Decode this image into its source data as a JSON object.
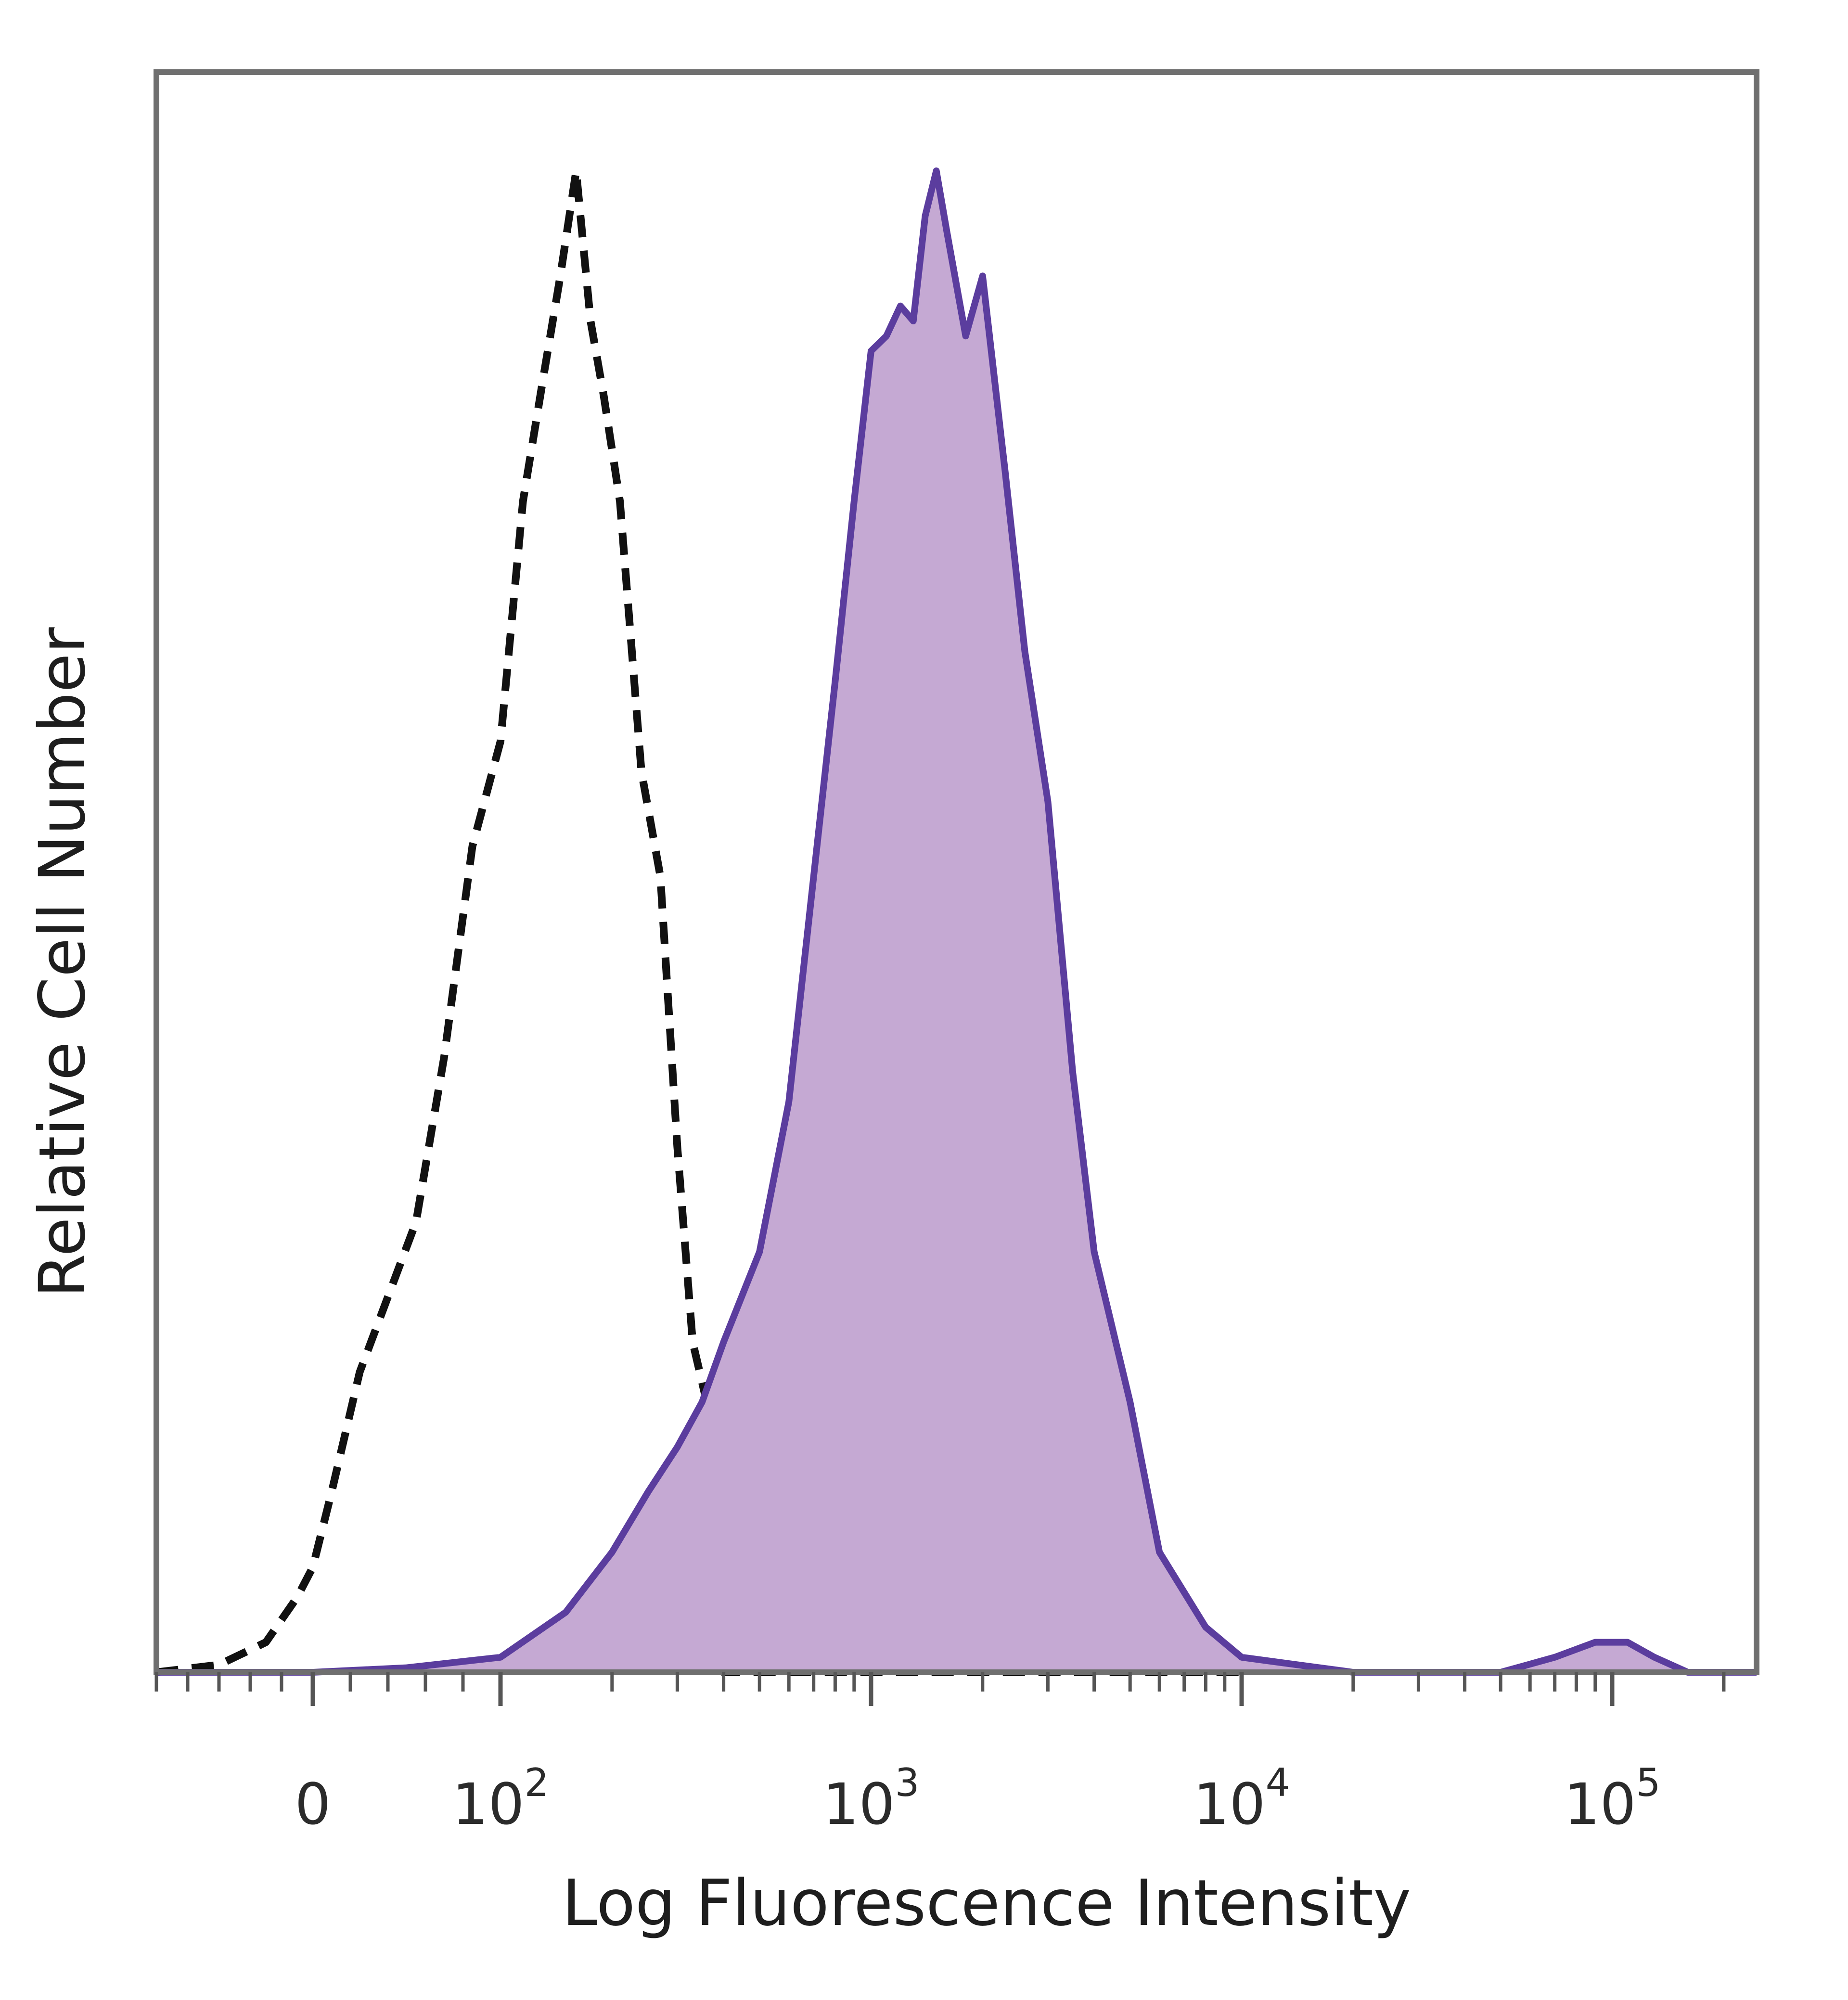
{
  "chart_data": {
    "type": "area",
    "title": "",
    "xlabel": "Log Fluorescence Intensity",
    "ylabel": "Relative Cell Number",
    "x_scale": "biexponential",
    "xlim": [
      -100,
      250000
    ],
    "ylim": [
      0,
      1
    ],
    "grid": false,
    "legend": "none",
    "x_tick_labels": [
      {
        "value": 0,
        "base": "0",
        "exp": ""
      },
      {
        "value": 100,
        "base": "10",
        "exp": "2"
      },
      {
        "value": 1000,
        "base": "10",
        "exp": "3"
      },
      {
        "value": 10000,
        "base": "10",
        "exp": "4"
      },
      {
        "value": 100000,
        "base": "10",
        "exp": "5"
      }
    ],
    "series": [
      {
        "style": "dashed-unfilled",
        "color": "#111111",
        "points": [
          [
            -100,
            0.0
          ],
          [
            -60,
            0.005
          ],
          [
            -30,
            0.02
          ],
          [
            -10,
            0.05
          ],
          [
            0,
            0.07
          ],
          [
            10,
            0.12
          ],
          [
            25,
            0.2
          ],
          [
            40,
            0.25
          ],
          [
            55,
            0.3
          ],
          [
            70,
            0.41
          ],
          [
            85,
            0.55
          ],
          [
            100,
            0.62
          ],
          [
            115,
            0.78
          ],
          [
            130,
            0.86
          ],
          [
            145,
            0.93
          ],
          [
            160,
            1.0
          ],
          [
            175,
            0.9
          ],
          [
            190,
            0.85
          ],
          [
            210,
            0.78
          ],
          [
            240,
            0.6
          ],
          [
            270,
            0.53
          ],
          [
            300,
            0.35
          ],
          [
            330,
            0.22
          ],
          [
            360,
            0.18
          ],
          [
            400,
            0.0
          ],
          [
            1000,
            0.0
          ],
          [
            10000,
            0.0
          ]
        ]
      },
      {
        "style": "filled",
        "color": "#5b3d9e",
        "fill": "#c5a9d3",
        "points": [
          [
            -100,
            0.0
          ],
          [
            0,
            0.0
          ],
          [
            50,
            0.003
          ],
          [
            100,
            0.01
          ],
          [
            150,
            0.04
          ],
          [
            200,
            0.08
          ],
          [
            250,
            0.12
          ],
          [
            300,
            0.15
          ],
          [
            350,
            0.18
          ],
          [
            400,
            0.22
          ],
          [
            500,
            0.28
          ],
          [
            600,
            0.38
          ],
          [
            700,
            0.53
          ],
          [
            800,
            0.66
          ],
          [
            900,
            0.78
          ],
          [
            1000,
            0.88
          ],
          [
            1100,
            0.89
          ],
          [
            1200,
            0.91
          ],
          [
            1300,
            0.9
          ],
          [
            1400,
            0.97
          ],
          [
            1500,
            1.0
          ],
          [
            1600,
            0.96
          ],
          [
            1800,
            0.89
          ],
          [
            2000,
            0.93
          ],
          [
            2300,
            0.8
          ],
          [
            2600,
            0.68
          ],
          [
            3000,
            0.58
          ],
          [
            3500,
            0.4
          ],
          [
            4000,
            0.28
          ],
          [
            5000,
            0.18
          ],
          [
            6000,
            0.08
          ],
          [
            8000,
            0.03
          ],
          [
            10000,
            0.01
          ],
          [
            20000,
            0.0
          ],
          [
            50000,
            0.0
          ],
          [
            70000,
            0.01
          ],
          [
            90000,
            0.02
          ],
          [
            110000,
            0.02
          ],
          [
            130000,
            0.01
          ],
          [
            160000,
            0.0
          ],
          [
            250000,
            0.0
          ]
        ]
      }
    ]
  }
}
